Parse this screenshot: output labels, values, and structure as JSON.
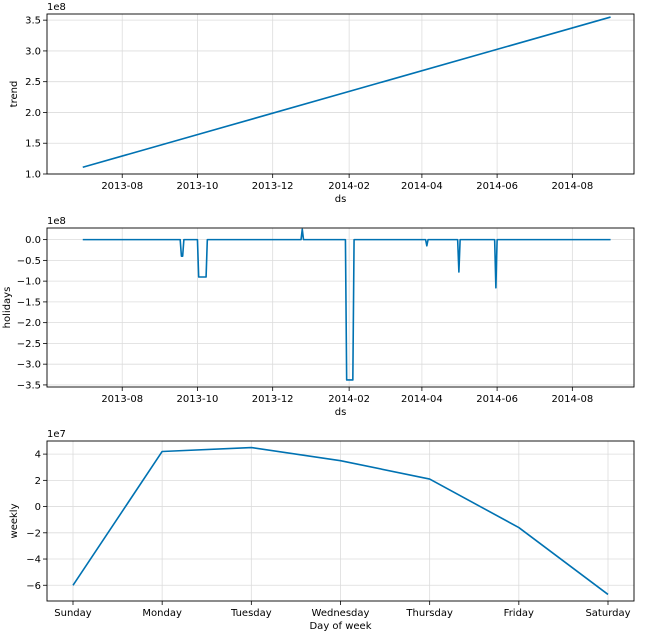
{
  "chart_data": [
    {
      "type": "line",
      "xlabel": "ds",
      "ylabel": "trend",
      "offset_label": "1e8",
      "x_kind": "date",
      "xlim": [
        "2013-06-01",
        "2014-09-20"
      ],
      "ylim": [
        1.0,
        3.6
      ],
      "yticks": [
        1.0,
        1.5,
        2.0,
        2.5,
        3.0,
        3.5
      ],
      "ytick_labels": [
        "1.0",
        "1.5",
        "2.0",
        "2.5",
        "3.0",
        "3.5"
      ],
      "xticks": [
        "2013-08-01",
        "2013-10-01",
        "2013-12-01",
        "2014-02-01",
        "2014-04-01",
        "2014-06-01",
        "2014-08-01"
      ],
      "xtick_labels": [
        "2013-08",
        "2013-10",
        "2013-12",
        "2014-02",
        "2014-04",
        "2014-06",
        "2014-08"
      ],
      "grid": true,
      "color": "#0072B2",
      "series": [
        {
          "x": [
            "2013-06-30",
            "2014-09-01"
          ],
          "y": [
            1.11,
            3.55
          ]
        }
      ]
    },
    {
      "type": "line",
      "xlabel": "ds",
      "ylabel": "holidays",
      "offset_label": "1e8",
      "x_kind": "date",
      "xlim": [
        "2013-06-01",
        "2014-09-20"
      ],
      "ylim": [
        -3.55,
        0.28
      ],
      "yticks": [
        -3.5,
        -3.0,
        -2.5,
        -2.0,
        -1.5,
        -1.0,
        -0.5,
        0.0
      ],
      "ytick_labels": [
        "−3.5",
        "−3.0",
        "−2.5",
        "−2.0",
        "−1.5",
        "−1.0",
        "−0.5",
        "0.0"
      ],
      "xticks": [
        "2013-08-01",
        "2013-10-01",
        "2013-12-01",
        "2014-02-01",
        "2014-04-01",
        "2014-06-01",
        "2014-08-01"
      ],
      "xtick_labels": [
        "2013-08",
        "2013-10",
        "2013-12",
        "2014-02",
        "2014-04",
        "2014-06",
        "2014-08"
      ],
      "grid": true,
      "color": "#0072B2",
      "series": [
        {
          "x": [
            "2013-06-30",
            "2013-09-17",
            "2013-09-18",
            "2013-09-19",
            "2013-09-20",
            "2013-10-01",
            "2013-10-02",
            "2013-10-03",
            "2013-10-04",
            "2013-10-05",
            "2013-10-06",
            "2013-10-07",
            "2013-10-08",
            "2013-10-09",
            "2013-12-24",
            "2013-12-25",
            "2013-12-26",
            "2014-01-29",
            "2014-01-30",
            "2014-01-31",
            "2014-02-01",
            "2014-02-02",
            "2014-02-03",
            "2014-02-04",
            "2014-02-05",
            "2014-04-04",
            "2014-04-05",
            "2014-04-06",
            "2014-04-30",
            "2014-05-01",
            "2014-05-02",
            "2014-05-30",
            "2014-05-31",
            "2014-06-01",
            "2014-09-01"
          ],
          "y": [
            0.0,
            0.0,
            -0.4,
            -0.4,
            0.0,
            0.0,
            -0.9,
            -0.9,
            -0.9,
            -0.9,
            -0.9,
            -0.9,
            -0.9,
            0.0,
            0.0,
            0.25,
            0.0,
            0.0,
            -3.38,
            -3.38,
            -3.38,
            -3.38,
            -3.38,
            -3.38,
            0.0,
            0.0,
            -0.15,
            0.0,
            0.0,
            -0.78,
            0.0,
            0.0,
            -1.16,
            0.0,
            0.0
          ]
        }
      ]
    },
    {
      "type": "line",
      "xlabel": "Day of week",
      "ylabel": "weekly",
      "offset_label": "1e7",
      "x_kind": "category",
      "categories": [
        "Sunday",
        "Monday",
        "Tuesday",
        "Wednesday",
        "Thursday",
        "Friday",
        "Saturday"
      ],
      "ylim": [
        -7.2,
        5.0
      ],
      "yticks": [
        -6,
        -4,
        -2,
        0,
        2,
        4
      ],
      "ytick_labels": [
        "−6",
        "−4",
        "−2",
        "0",
        "2",
        "4"
      ],
      "grid": true,
      "color": "#0072B2",
      "series": [
        {
          "values": [
            -6.0,
            4.2,
            4.5,
            3.5,
            2.1,
            -1.6,
            -6.7
          ]
        }
      ]
    }
  ]
}
